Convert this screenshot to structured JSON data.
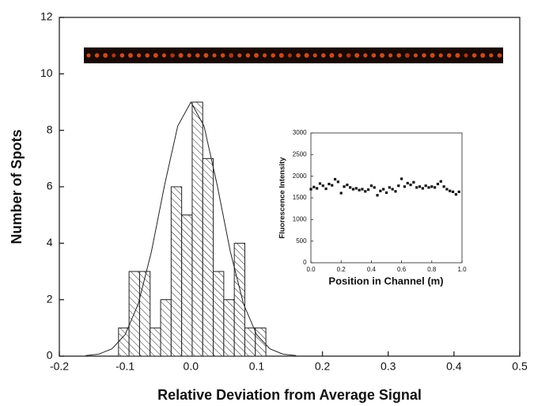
{
  "chart_data": [
    {
      "type": "histogram",
      "xlabel": "Relative Deviation from Average Signal",
      "ylabel": "Number of Spots",
      "xlim": [
        -0.2,
        0.5
      ],
      "xticks": [
        -0.2,
        -0.1,
        {
          "value": 0,
          "label": "0.0"
        },
        0.1,
        0.2,
        0.3,
        0.4,
        0.5
      ],
      "ylim": [
        0,
        12
      ],
      "yticks": [
        0,
        2,
        4,
        6,
        8,
        10,
        12
      ],
      "bins": [
        -0.11,
        -0.094,
        -0.078,
        -0.062,
        -0.046,
        -0.03,
        -0.014,
        0.002,
        0.018,
        0.034,
        0.05,
        0.066,
        0.082,
        0.098,
        0.114
      ],
      "values": [
        1,
        3,
        3,
        1,
        2,
        6,
        5,
        9,
        7,
        3,
        2,
        4,
        1,
        1
      ],
      "color": "#222222",
      "fit": {
        "x": [
          -0.16,
          -0.14,
          -0.12,
          -0.1,
          -0.08,
          -0.06,
          -0.04,
          -0.02,
          0,
          0.02,
          0.04,
          0.06,
          0.08,
          0.1,
          0.12,
          0.14,
          0.16
        ],
        "y": [
          0.02,
          0.07,
          0.26,
          0.76,
          1.85,
          3.7,
          6.06,
          8.15,
          9,
          8.15,
          6.06,
          3.7,
          1.85,
          0.76,
          0.26,
          0.07,
          0.02
        ]
      }
    },
    {
      "type": "scatter",
      "xlabel": "Position in Channel (m)",
      "ylabel": "Fluorescence Intensity",
      "xlim": [
        0,
        1
      ],
      "xticks": [
        {
          "value": 0,
          "label": "0.0"
        },
        0.2,
        0.4,
        0.6,
        0.8,
        {
          "value": 1,
          "label": "1.0"
        }
      ],
      "ylim": [
        0,
        3000
      ],
      "yticks": [
        0,
        500,
        1000,
        1500,
        2000,
        2500,
        3000
      ],
      "color": "#111111",
      "x": [
        0,
        0.02,
        0.04,
        0.06,
        0.08,
        0.1,
        0.12,
        0.14,
        0.16,
        0.18,
        0.2,
        0.22,
        0.24,
        0.26,
        0.28,
        0.3,
        0.32,
        0.34,
        0.36,
        0.38,
        0.4,
        0.42,
        0.44,
        0.46,
        0.48,
        0.5,
        0.52,
        0.54,
        0.56,
        0.58,
        0.6,
        0.62,
        0.64,
        0.66,
        0.68,
        0.7,
        0.72,
        0.74,
        0.76,
        0.78,
        0.8,
        0.82,
        0.84,
        0.86,
        0.88,
        0.9,
        0.92,
        0.94,
        0.96,
        0.98
      ],
      "values": [
        1700,
        1750,
        1720,
        1830,
        1780,
        1710,
        1820,
        1790,
        1930,
        1870,
        1610,
        1760,
        1800,
        1740,
        1700,
        1720,
        1680,
        1700,
        1650,
        1690,
        1780,
        1740,
        1560,
        1660,
        1700,
        1620,
        1740,
        1700,
        1650,
        1780,
        1940,
        1760,
        1840,
        1800,
        1860,
        1740,
        1760,
        1720,
        1780,
        1740,
        1760,
        1740,
        1820,
        1880,
        1760,
        1700,
        1660,
        1640,
        1580,
        1640
      ]
    }
  ]
}
